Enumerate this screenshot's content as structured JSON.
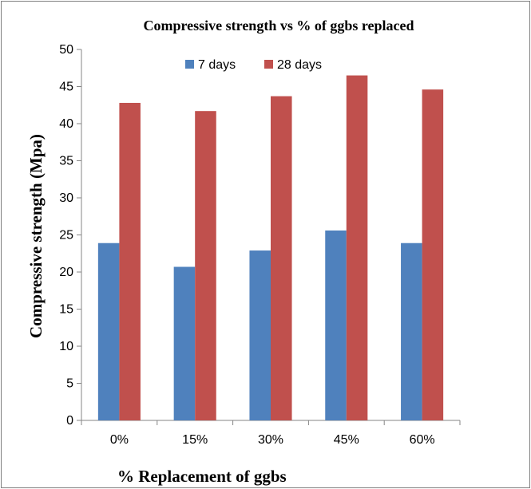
{
  "chart_data": {
    "type": "bar",
    "title": "Compressive strength vs % of ggbs replaced",
    "xlabel": "% Replacement of ggbs",
    "ylabel": "Compressive strength (Mpa)",
    "categories": [
      "0%",
      "15%",
      "30%",
      "45%",
      "60%"
    ],
    "series": [
      {
        "name": "7 days",
        "values": [
          23.9,
          20.7,
          22.9,
          25.6,
          23.9
        ],
        "color": "#4f81bd"
      },
      {
        "name": "28 days",
        "values": [
          42.8,
          41.7,
          43.7,
          46.5,
          44.6
        ],
        "color": "#c0504d"
      }
    ],
    "ylim": [
      0,
      50
    ],
    "yticks": [
      0,
      5,
      10,
      15,
      20,
      25,
      30,
      35,
      40,
      45,
      50
    ],
    "grid": false,
    "legend_position": "top-center"
  }
}
